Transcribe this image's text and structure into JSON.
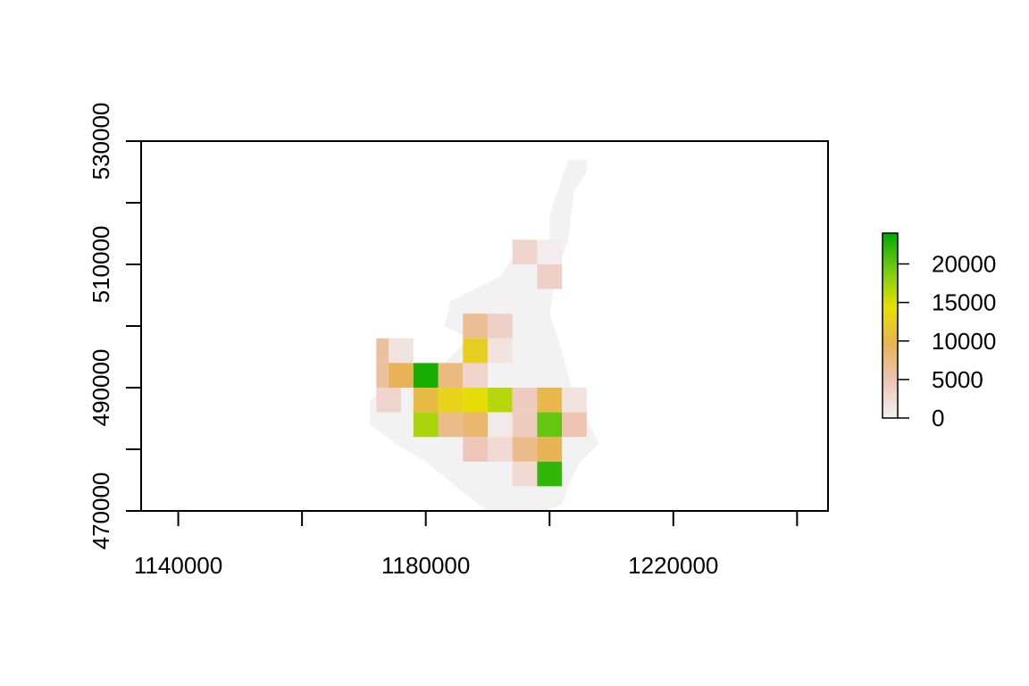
{
  "chart_data": {
    "type": "heatmap",
    "title": "",
    "xlabel": "",
    "ylabel": "",
    "xlim": [
      1134000,
      1245000
    ],
    "ylim": [
      470000,
      530000
    ],
    "x_ticks": [
      1140000,
      1160000,
      1180000,
      1200000,
      1220000,
      1240000
    ],
    "x_tick_labels": [
      "1140000",
      "",
      "1180000",
      "",
      "1220000",
      ""
    ],
    "y_ticks": [
      470000,
      480000,
      490000,
      500000,
      510000,
      520000,
      530000
    ],
    "y_tick_labels": [
      "470000",
      "",
      "490000",
      "",
      "510000",
      "",
      "530000"
    ],
    "cell_size": 4000,
    "nodata_color": "#f2f2f2",
    "color_scale": {
      "min": 0,
      "max": 24000,
      "stops": [
        "#f2f2f2",
        "#eec4b6",
        "#e8b355",
        "#e6e000",
        "#78cc14",
        "#00a600"
      ],
      "legend_ticks": [
        0,
        5000,
        10000,
        15000,
        20000
      ],
      "legend_tick_labels": [
        "0",
        "5000",
        "10000",
        "15000",
        "20000"
      ]
    },
    "background_region": [
      [
        1176000,
        490000
      ],
      [
        1181000,
        492000
      ],
      [
        1183000,
        494000
      ],
      [
        1187000,
        498000
      ],
      [
        1183000,
        500000
      ],
      [
        1184000,
        504000
      ],
      [
        1188000,
        506000
      ],
      [
        1192000,
        508000
      ],
      [
        1194000,
        511000
      ],
      [
        1196000,
        513000
      ],
      [
        1200000,
        512000
      ],
      [
        1200000,
        518000
      ],
      [
        1202000,
        524000
      ],
      [
        1203000,
        527000
      ],
      [
        1206000,
        527000
      ],
      [
        1206000,
        525000
      ],
      [
        1204000,
        522000
      ],
      [
        1203000,
        514000
      ],
      [
        1201000,
        508000
      ],
      [
        1200000,
        502000
      ],
      [
        1202000,
        496000
      ],
      [
        1204000,
        488000
      ],
      [
        1206000,
        485000
      ],
      [
        1208000,
        481000
      ],
      [
        1205000,
        478000
      ],
      [
        1203000,
        474000
      ],
      [
        1202000,
        471000
      ],
      [
        1199000,
        470000
      ],
      [
        1190000,
        470000
      ],
      [
        1186000,
        473000
      ],
      [
        1180000,
        478000
      ],
      [
        1175000,
        481000
      ],
      [
        1171000,
        484000
      ],
      [
        1171000,
        488000
      ],
      [
        1174000,
        490000
      ]
    ],
    "cells": [
      {
        "x": 1194000,
        "y": 510000,
        "value": 3000
      },
      {
        "x": 1198000,
        "y": 510000,
        "value": 500
      },
      {
        "x": 1198000,
        "y": 506000,
        "value": 3500
      },
      {
        "x": 1186000,
        "y": 498000,
        "value": 6500
      },
      {
        "x": 1190000,
        "y": 498000,
        "value": 3500
      },
      {
        "x": 1186000,
        "y": 494000,
        "value": 12500
      },
      {
        "x": 1190000,
        "y": 494000,
        "value": 1500
      },
      {
        "x": 1172000,
        "y": 494000,
        "value": 6000
      },
      {
        "x": 1174000,
        "y": 494000,
        "value": 1500
      },
      {
        "x": 1172000,
        "y": 490000,
        "value": 6000
      },
      {
        "x": 1174000,
        "y": 490000,
        "value": 9500
      },
      {
        "x": 1178000,
        "y": 490000,
        "value": 23000
      },
      {
        "x": 1182000,
        "y": 490000,
        "value": 7500
      },
      {
        "x": 1186000,
        "y": 490000,
        "value": 3000
      },
      {
        "x": 1172000,
        "y": 486000,
        "value": 3000
      },
      {
        "x": 1178000,
        "y": 486000,
        "value": 10500
      },
      {
        "x": 1182000,
        "y": 486000,
        "value": 13000
      },
      {
        "x": 1186000,
        "y": 486000,
        "value": 14000
      },
      {
        "x": 1190000,
        "y": 486000,
        "value": 16500
      },
      {
        "x": 1194000,
        "y": 486000,
        "value": 4000
      },
      {
        "x": 1198000,
        "y": 486000,
        "value": 10000
      },
      {
        "x": 1202000,
        "y": 486000,
        "value": 1500
      },
      {
        "x": 1178000,
        "y": 482000,
        "value": 17000
      },
      {
        "x": 1182000,
        "y": 482000,
        "value": 7000
      },
      {
        "x": 1186000,
        "y": 482000,
        "value": 8500
      },
      {
        "x": 1190000,
        "y": 482000,
        "value": 800
      },
      {
        "x": 1194000,
        "y": 482000,
        "value": 4000
      },
      {
        "x": 1198000,
        "y": 482000,
        "value": 20000
      },
      {
        "x": 1202000,
        "y": 482000,
        "value": 5000
      },
      {
        "x": 1186000,
        "y": 478000,
        "value": 4500
      },
      {
        "x": 1190000,
        "y": 478000,
        "value": 2500
      },
      {
        "x": 1194000,
        "y": 478000,
        "value": 7000
      },
      {
        "x": 1198000,
        "y": 478000,
        "value": 9500
      },
      {
        "x": 1194000,
        "y": 474000,
        "value": 2500
      },
      {
        "x": 1198000,
        "y": 474000,
        "value": 22000
      }
    ]
  }
}
